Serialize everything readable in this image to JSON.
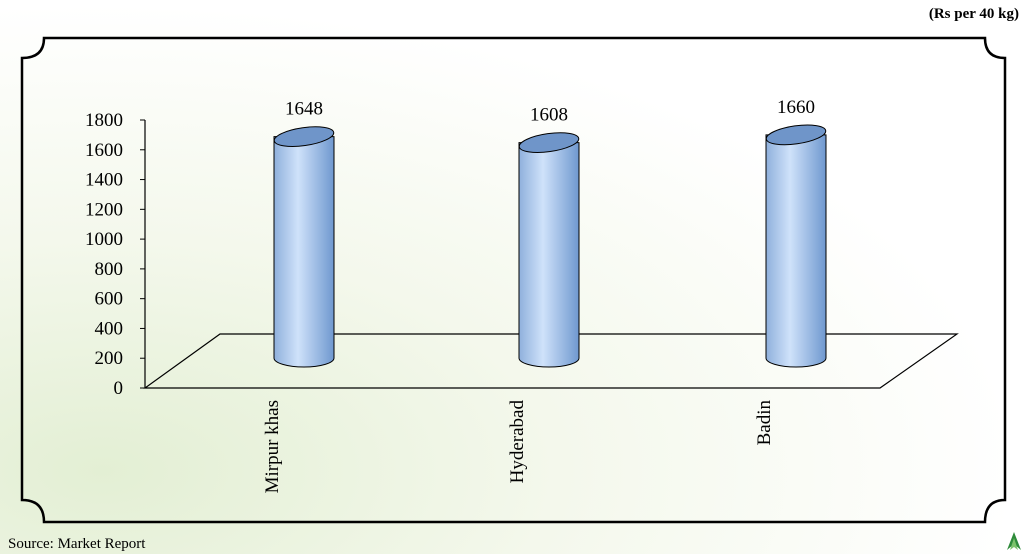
{
  "unit_note": "(Rs per 40 kg)",
  "source_note": "Source: Market Report",
  "chart_data": {
    "type": "bar",
    "categories": [
      "Mirpur khas",
      "Hyderabad",
      "Badin"
    ],
    "values": [
      1648,
      1608,
      1660
    ],
    "ylim": [
      0,
      1800
    ],
    "yticks": [
      0,
      200,
      400,
      600,
      800,
      1000,
      1200,
      1400,
      1600,
      1800
    ],
    "bar_color": "#8fb8e8",
    "legend": false,
    "grid": false
  }
}
